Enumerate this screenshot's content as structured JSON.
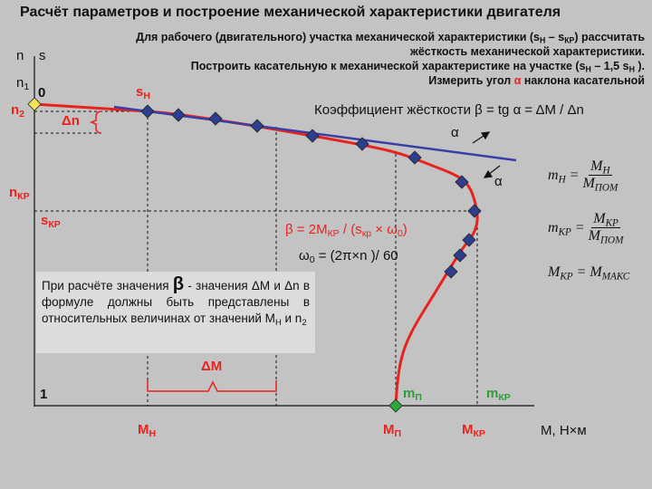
{
  "title": "Расчёт параметров и построение механической характеристики двигателя",
  "instructions": [
    [
      {
        "text": "Для рабочего (двигательного) участка механической характеристики (s"
      },
      {
        "text": "Н",
        "sub": true
      },
      {
        "text": " – s"
      },
      {
        "text": "КР",
        "sub": true
      },
      {
        "text": ") рассчитать"
      }
    ],
    [
      {
        "text": "жёсткость механической характеристики."
      }
    ],
    [
      {
        "text": "Построить касательную к механической характеристике на участке (s"
      },
      {
        "text": "Н",
        "sub": true
      },
      {
        "text": " – 1,5 s"
      },
      {
        "text": "Н",
        "sub": true
      },
      {
        "text": " )."
      }
    ],
    [
      {
        "text": "Измерить угол "
      },
      {
        "text": "α",
        "accent": true
      },
      {
        "text": " наклона касательной"
      }
    ]
  ],
  "labels": {
    "n": [
      {
        "text": "n"
      }
    ],
    "s": [
      {
        "text": "s"
      }
    ],
    "n1": [
      {
        "text": "n"
      },
      {
        "text": "1",
        "sub": true
      }
    ],
    "zero": [
      {
        "text": "0"
      }
    ],
    "one": [
      {
        "text": "1"
      }
    ],
    "n2": [
      {
        "text": "n"
      },
      {
        "text": "2",
        "sub": true
      }
    ],
    "dn": [
      {
        "text": "Δn"
      }
    ],
    "sn": [
      {
        "text": "s"
      },
      {
        "text": "Н",
        "sub": true
      }
    ],
    "nkr": [
      {
        "text": "n"
      },
      {
        "text": "КР",
        "sub": true
      }
    ],
    "skr": [
      {
        "text": "s"
      },
      {
        "text": "КР",
        "sub": true
      }
    ],
    "mn": [
      {
        "text": "М"
      },
      {
        "text": "Н",
        "sub": true
      }
    ],
    "mp": [
      {
        "text": "М"
      },
      {
        "text": "П",
        "sub": true
      }
    ],
    "mkr": [
      {
        "text": "М"
      },
      {
        "text": "КР",
        "sub": true
      }
    ],
    "m_unit": [
      {
        "text": "М, Н×м"
      }
    ],
    "mp_small": [
      {
        "text": "m"
      },
      {
        "text": "П",
        "sub": true
      }
    ],
    "mkr_small": [
      {
        "text": "m"
      },
      {
        "text": "КР",
        "sub": true
      }
    ],
    "dm": [
      {
        "text": "ΔМ"
      }
    ],
    "alpha1": [
      {
        "text": "α"
      }
    ],
    "alpha2": [
      {
        "text": "α"
      }
    ]
  },
  "stiffness": [
    {
      "text": "Коэффициент жёсткости β = tg α = ΔM / Δn"
    }
  ],
  "beta_formula": [
    {
      "text": "β = 2M"
    },
    {
      "text": "КР",
      "sub": true
    },
    {
      "text": " / (s"
    },
    {
      "text": "кр",
      "sub": true
    },
    {
      "text": " × ω"
    },
    {
      "text": "0",
      "sub": true
    },
    {
      "text": ")"
    }
  ],
  "omega_formula": [
    {
      "text": "ω"
    },
    {
      "text": "0",
      "sub": true
    },
    {
      "text": " = (2π×n )/ 60"
    }
  ],
  "note": [
    {
      "text": "При расчёте значения "
    },
    {
      "text": "β",
      "big": true
    },
    {
      "text": " - значения ΔМ и Δn в формуле должны быть представлены в относительных величинах от значений М"
    },
    {
      "text": "Н",
      "sub": true
    },
    {
      "text": " и n"
    },
    {
      "text": "2",
      "sub": true
    }
  ],
  "formulas": [
    {
      "lhs": [
        {
          "text": "m"
        },
        {
          "text": "Н",
          "sub": true
        }
      ],
      "num": [
        {
          "text": "M"
        },
        {
          "text": "Н",
          "sub": true
        }
      ],
      "den": [
        {
          "text": "M"
        },
        {
          "text": "ПОМ",
          "sub": true
        }
      ]
    },
    {
      "lhs": [
        {
          "text": "m"
        },
        {
          "text": "КР",
          "sub": true
        }
      ],
      "num": [
        {
          "text": "M"
        },
        {
          "text": "КР",
          "sub": true
        }
      ],
      "den": [
        {
          "text": "M"
        },
        {
          "text": "ПОМ",
          "sub": true
        }
      ]
    },
    {
      "lhs": [
        {
          "text": "M"
        },
        {
          "text": "КР",
          "sub": true
        }
      ],
      "rhs": [
        {
          "text": "M"
        },
        {
          "text": "МАКС",
          "sub": true
        }
      ]
    }
  ]
}
